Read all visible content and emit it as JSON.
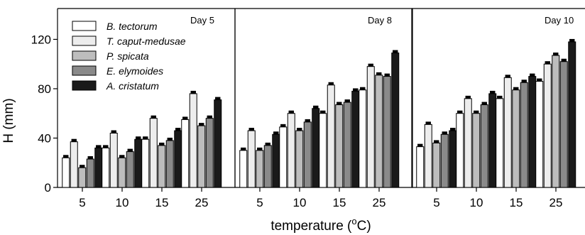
{
  "chart_data": {
    "type": "bar",
    "ylabel": "H (mm)",
    "xlabel_main": "temperature (",
    "xlabel_sup": "o",
    "xlabel_unit": "C)",
    "ylim": [
      0,
      145
    ],
    "yticks": [
      0,
      40,
      80,
      120
    ],
    "categories": [
      "5",
      "10",
      "15",
      "25"
    ],
    "legend_position": "top-left",
    "series_styles": [
      {
        "name": "B. tectorum",
        "fill": "#ffffff"
      },
      {
        "name": "T. caput-medusae",
        "fill": "#ededed"
      },
      {
        "name": "P. spicata",
        "fill": "#bdbdbd"
      },
      {
        "name": "E. elymoides",
        "fill": "#8a8a8a"
      },
      {
        "name": "A. cristatum",
        "fill": "#1a1a1a"
      }
    ],
    "panels": [
      {
        "title": "Day 5",
        "series": [
          {
            "name": "B. tectorum",
            "values": [
              24,
              32,
              39,
              55
            ]
          },
          {
            "name": "T. caput-medusae",
            "values": [
              37,
              44,
              56,
              76
            ]
          },
          {
            "name": "P. spicata",
            "values": [
              16,
              24,
              34,
              50
            ]
          },
          {
            "name": "E. elymoides",
            "values": [
              23,
              29,
              38,
              56
            ]
          },
          {
            "name": "A. cristatum",
            "values": [
              32,
              39,
              46,
              71
            ]
          }
        ]
      },
      {
        "title": "Day 8",
        "series": [
          {
            "name": "B. tectorum",
            "values": [
              30,
              49,
              60,
              79
            ]
          },
          {
            "name": "T. caput-medusae",
            "values": [
              46,
              60,
              83,
              98
            ]
          },
          {
            "name": "P. spicata",
            "values": [
              30,
              46,
              67,
              91
            ]
          },
          {
            "name": "E. elymoides",
            "values": [
              34,
              53,
              69,
              90
            ]
          },
          {
            "name": "A. cristatum",
            "values": [
              43,
              64,
              78,
              109
            ]
          }
        ]
      },
      {
        "title": "Day 10",
        "series": [
          {
            "name": "B. tectorum",
            "values": [
              33,
              60,
              72,
              86
            ]
          },
          {
            "name": "T. caput-medusae",
            "values": [
              51,
              72,
              89,
              100
            ]
          },
          {
            "name": "P. spicata",
            "values": [
              36,
              60,
              79,
              107
            ]
          },
          {
            "name": "E. elymoides",
            "values": [
              43,
              67,
              85,
              102
            ]
          },
          {
            "name": "A. cristatum",
            "values": [
              46,
              76,
              90,
              118
            ]
          }
        ]
      }
    ]
  }
}
